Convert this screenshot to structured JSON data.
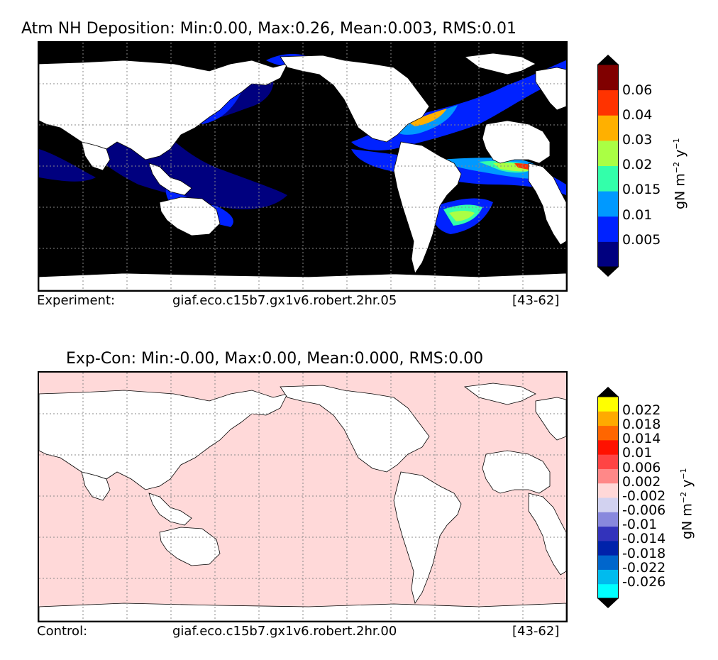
{
  "panel1": {
    "title": "Atm NH Deposition: Min:0.00, Max:0.26, Mean:0.003, RMS:0.01",
    "footer": {
      "label": "Experiment:",
      "case": "giaf.eco.c15b7.gx1v6.robert.2hr.05",
      "years": "[43-62]"
    },
    "colorbar": {
      "ticks": [
        "0.06",
        "0.04",
        "0.03",
        "0.02",
        "0.015",
        "0.01",
        "0.005"
      ],
      "colors_bottom_to_top": [
        "#00007f",
        "#0022ff",
        "#0099ff",
        "#33ffaa",
        "#aaff44",
        "#ffb000",
        "#ff3300",
        "#800000"
      ],
      "under_color": "#000000",
      "over_color": "#000000",
      "unit": {
        "base": "gN m",
        "exp1": "−2",
        "mid": " y",
        "exp2": "−1"
      }
    }
  },
  "panel2": {
    "title": "Exp-Con: Min:-0.00, Max:0.00, Mean:0.000, RMS:0.00",
    "footer": {
      "label": "Control:",
      "case": "giaf.eco.c15b7.gx1v6.robert.2hr.00",
      "years": "[43-62]"
    },
    "colorbar": {
      "ticks": [
        "0.022",
        "0.018",
        "0.014",
        "0.01",
        "0.006",
        "0.002",
        "-0.002",
        "-0.006",
        "-0.01",
        "-0.014",
        "-0.018",
        "-0.022",
        "-0.026"
      ],
      "colors_bottom_to_top": [
        "#00ffff",
        "#00bbee",
        "#0066cc",
        "#0022aa",
        "#3333bb",
        "#8888dd",
        "#d2d2f0",
        "#ffd8d8",
        "#ff8888",
        "#ff4444",
        "#ff1100",
        "#ff6600",
        "#ffaa00",
        "#ffff00"
      ],
      "under_color": "#000000",
      "over_color": "#000000",
      "unit": {
        "base": "gN m",
        "exp1": "−2",
        "mid": " y",
        "exp2": "−1"
      }
    }
  },
  "map_colors": {
    "ocean_panel1": "#000000",
    "ocean_panel2": "#ffd9d9",
    "land": "#ffffff",
    "grid": "#888888"
  }
}
